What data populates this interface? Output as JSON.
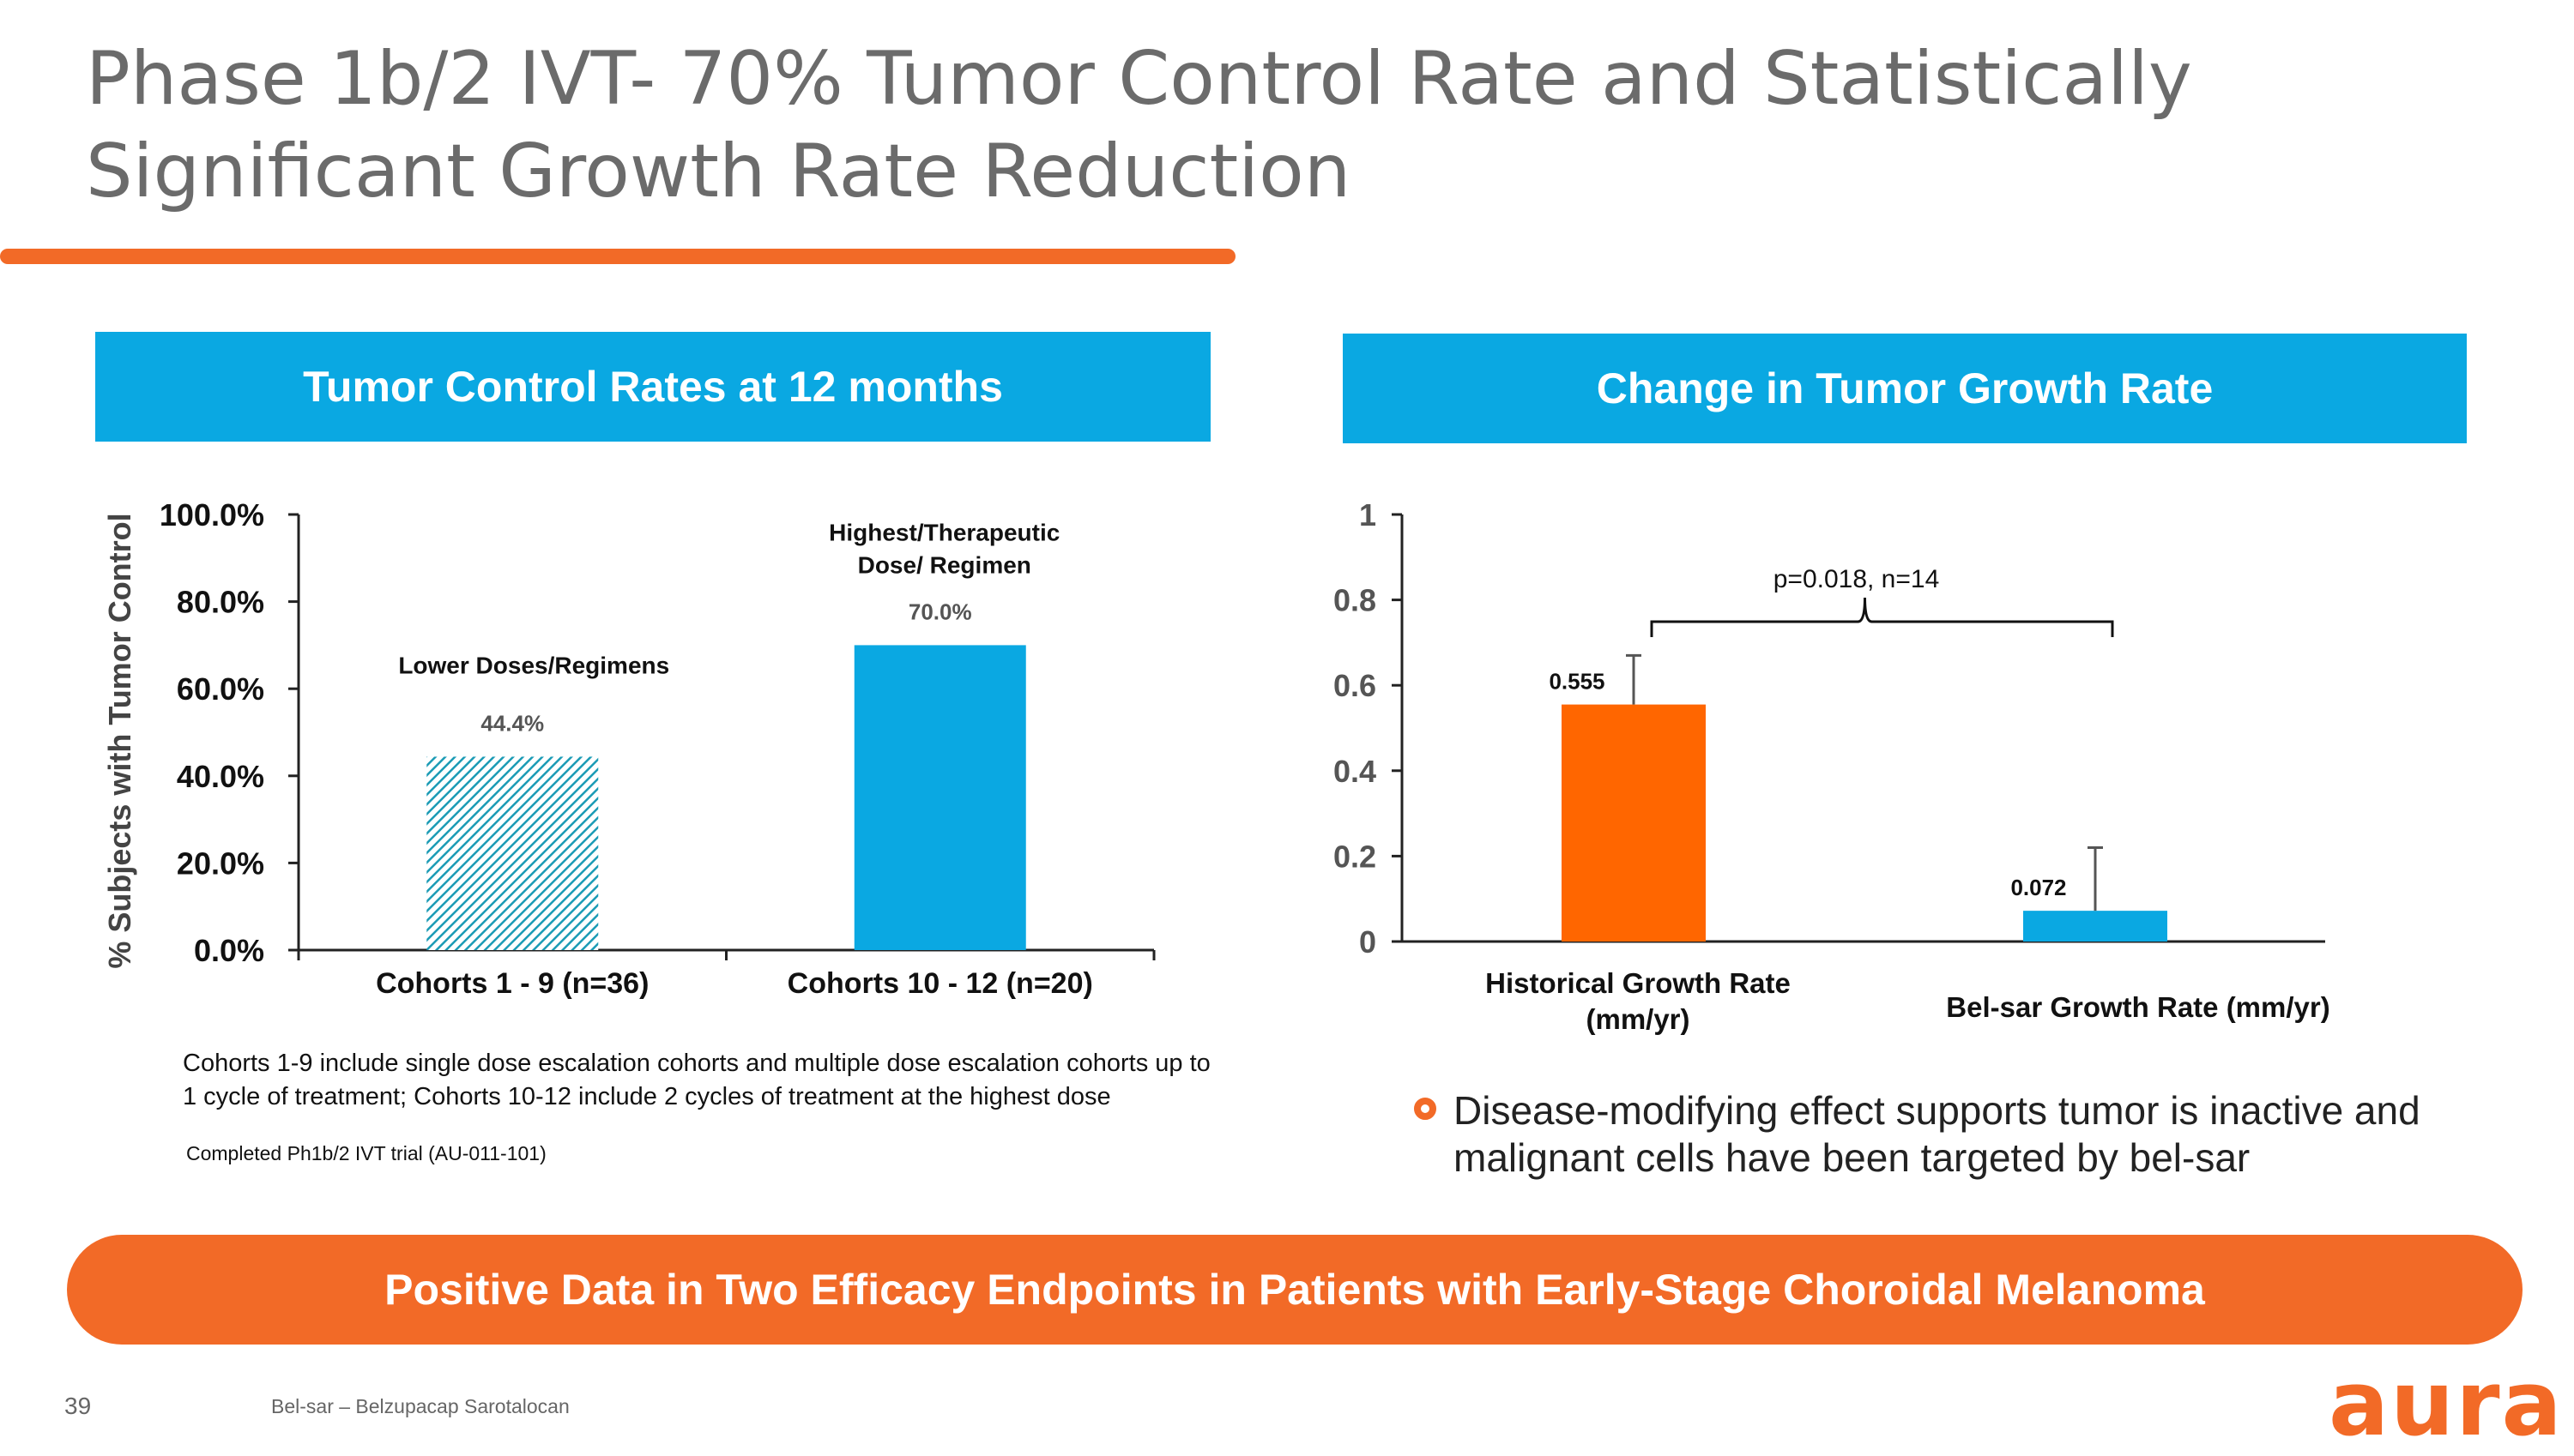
{
  "slide": {
    "title": "Phase 1b/2 IVT- 70% Tumor Control Rate and Statistically Significant Growth Rate Reduction",
    "left_header": "Tumor Control Rates at 12 months",
    "right_header": "Change in Tumor Growth Rate",
    "footnote": "Cohorts 1-9 include single dose escalation cohorts and multiple dose escalation cohorts up to 1 cycle of treatment; Cohorts 10-12 include 2 cycles of treatment at the highest dose",
    "trial_note": "Completed Ph1b/2 IVT trial (AU-011-101)",
    "bullet": "Disease-modifying effect supports tumor is inactive and malignant cells have been targeted by bel-sar",
    "banner": "Positive Data in Two Efficacy Endpoints in Patients with Early-Stage Choroidal Melanoma",
    "page_number": "39",
    "footer": "Bel-sar – Belzupacap Sarotalocan",
    "logo": "aura"
  },
  "colors": {
    "accent_orange": "#f26a27",
    "bar_orange": "#ff6600",
    "blue": "#0aa8e2",
    "teal": "#1b9bb5"
  },
  "chart_data": [
    {
      "type": "bar",
      "title": "Tumor Control Rates at 12 months",
      "ylabel": "% Subjects with Tumor Control",
      "ylim": [
        0,
        100
      ],
      "yticks": [
        "0.0%",
        "20.0%",
        "40.0%",
        "60.0%",
        "80.0%",
        "100.0%"
      ],
      "categories": [
        "Cohorts 1 - 9 (n=36)",
        "Cohorts 10 - 12 (n=20)"
      ],
      "values": [
        44.4,
        70.0
      ],
      "value_labels": [
        "44.4%",
        "70.0%"
      ],
      "annotations": [
        "Lower Doses/Regimens",
        "Highest/Therapeutic",
        "Dose/ Regimen"
      ]
    },
    {
      "type": "bar",
      "title": "Change in Tumor Growth Rate",
      "ylim": [
        0,
        1
      ],
      "yticks": [
        "0",
        "0.2",
        "0.4",
        "0.6",
        "0.8",
        "1"
      ],
      "categories": [
        "Historical Growth Rate",
        "Bel-sar Growth Rate (mm/yr)"
      ],
      "category_sublabels": [
        "(mm/yr)",
        ""
      ],
      "values": [
        0.555,
        0.072
      ],
      "value_labels": [
        "0.555",
        "0.072"
      ],
      "error_upper": [
        0.67,
        0.22
      ],
      "significance": "p=0.018, n=14"
    }
  ]
}
